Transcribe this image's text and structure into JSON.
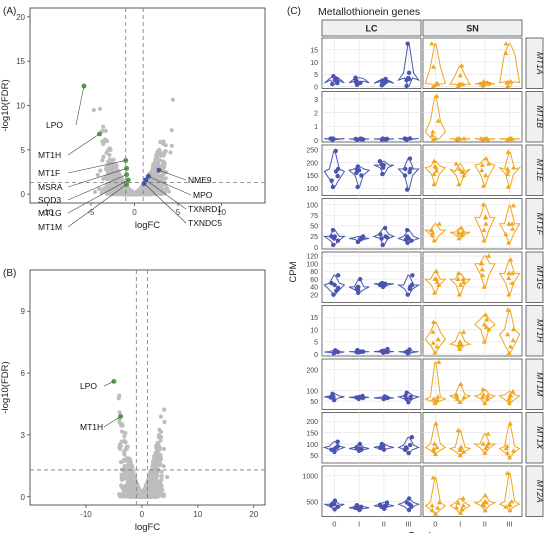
{
  "colors": {
    "grey": "#bdbdbd",
    "green": "#5a9e4f",
    "blue": "#4b55b0",
    "orange": "#f0a51c",
    "panel_border": "#333333",
    "grid": "#e6e6e6",
    "strip_bg": "#f0f0f0"
  },
  "chart_data": [
    {
      "type": "scatter",
      "panel_label": "(A)",
      "xlabel": "logFC",
      "ylabel": "-log10(FDR)",
      "xlim": [
        -12,
        15
      ],
      "ylim": [
        -1,
        21
      ],
      "xticks": [
        -10,
        -5,
        0,
        5,
        10
      ],
      "yticks": [
        0,
        5,
        10,
        15,
        20
      ],
      "vlines": [
        -1,
        1
      ],
      "hline": 1.3,
      "highlighted": [
        {
          "label": "LPO",
          "x": -5.8,
          "y": 12.2,
          "color": "green"
        },
        {
          "label": "MT1H",
          "x": -4.0,
          "y": 6.8,
          "color": "green"
        },
        {
          "label": "MT1F",
          "x": -1.0,
          "y": 3.8,
          "color": "green"
        },
        {
          "label": "MSRA",
          "x": -0.9,
          "y": 2.9,
          "color": "green"
        },
        {
          "label": "SOD3",
          "x": -0.9,
          "y": 2.2,
          "color": "green"
        },
        {
          "label": "MT1G",
          "x": -0.7,
          "y": 1.6,
          "color": "green"
        },
        {
          "label": "MT1M",
          "x": -0.9,
          "y": 1.1,
          "color": "green"
        },
        {
          "label": "NME9",
          "x": 2.8,
          "y": 2.7,
          "color": "blue"
        },
        {
          "label": "MPO",
          "x": 1.6,
          "y": 2.0,
          "color": "blue"
        },
        {
          "label": "TXNRD1",
          "x": 1.3,
          "y": 1.6,
          "color": "blue"
        },
        {
          "label": "TXNDC5",
          "x": 1.1,
          "y": 1.2,
          "color": "blue"
        }
      ]
    },
    {
      "type": "scatter",
      "panel_label": "(B)",
      "xlabel": "logFC",
      "ylabel": "-log10(FDR)",
      "xlim": [
        -20,
        22
      ],
      "ylim": [
        -0.4,
        11
      ],
      "xticks": [
        -10,
        0,
        10,
        20
      ],
      "yticks": [
        0,
        3,
        6,
        9
      ],
      "vlines": [
        -1,
        1
      ],
      "hline": 1.3,
      "highlighted": [
        {
          "label": "LPO",
          "x": -5.0,
          "y": 5.6,
          "color": "green"
        },
        {
          "label": "MT1H",
          "x": -3.8,
          "y": 3.9,
          "color": "green"
        }
      ]
    },
    {
      "type": "violin",
      "panel_label": "(C)",
      "title": "Metallothionein genes",
      "xlabel": "Braak",
      "ylabel": "CPM",
      "columns": [
        "LC",
        "SN"
      ],
      "categories": [
        "0",
        "I",
        "II",
        "III"
      ],
      "column_colors": [
        "blue",
        "orange"
      ],
      "genes": [
        {
          "name": "MT1A",
          "ylim": [
            0,
            19
          ],
          "yticks": [
            0,
            5,
            10,
            15
          ],
          "LC": [
            [
              1.4,
              1,
              2.6,
              3.2,
              4.2
            ],
            [
              1.5,
              0.7,
              2.2,
              3.1,
              3.6
            ],
            [
              1.3,
              0.5,
              2,
              2.4,
              3.1
            ],
            [
              2.6,
              0.2,
              3.5,
              5.6,
              17.5
            ]
          ],
          "SN": [
            [
              1.2,
              0,
              1,
              8,
              17.5
            ],
            [
              0.9,
              0,
              1,
              4.5,
              8.5
            ],
            [
              1,
              0.3,
              1.1,
              1.6,
              2
            ],
            [
              1.5,
              0,
              2,
              13.6,
              17.5
            ]
          ]
        },
        {
          "name": "MT1B",
          "ylim": [
            0,
            3.4
          ],
          "yticks": [
            0,
            1,
            2,
            3
          ],
          "LC": [
            [
              0.1,
              0.02,
              0.05,
              0.08,
              0.1
            ],
            [
              0.08,
              0.02,
              0.05,
              0.08,
              0.1
            ],
            [
              0.08,
              0.02,
              0.05,
              0.08,
              0.1
            ],
            [
              0.12,
              0.02,
              0.05,
              0.08,
              0.1
            ]
          ],
          "SN": [
            [
              0.6,
              0.05,
              0.1,
              1.4,
              3.2
            ],
            [
              0.1,
              0.03,
              0.05,
              0.08,
              0.1
            ],
            [
              0.1,
              0.03,
              0.05,
              0.08,
              0.1
            ],
            [
              0.1,
              0.03,
              0.05,
              0.08,
              0.1
            ]
          ]
        },
        {
          "name": "MT1E",
          "ylim": [
            80,
            260
          ],
          "yticks": [
            100,
            150,
            200,
            250
          ],
          "LC": [
            [
              165,
              105,
              130,
              175,
              245
            ],
            [
              170,
              105,
              150,
              175,
              185
            ],
            [
              190,
              155,
              180,
              190,
              205
            ],
            [
              175,
              95,
              150,
              175,
              215
            ]
          ],
          "SN": [
            [
              180,
              115,
              155,
              185,
              205
            ],
            [
              175,
              115,
              150,
              165,
              195
            ],
            [
              190,
              110,
              150,
              195,
              215
            ],
            [
              180,
              105,
              155,
              175,
              240
            ]
          ]
        },
        {
          "name": "MT1F",
          "ylim": [
            0,
            110
          ],
          "yticks": [
            0,
            25,
            50,
            75,
            100
          ],
          "LC": [
            [
              25,
              5,
              15,
              25,
              40
            ],
            [
              20,
              12,
              18,
              22,
              25
            ],
            [
              25,
              5,
              20,
              30,
              45
            ],
            [
              20,
              10,
              15,
              25,
              40
            ]
          ],
          "SN": [
            [
              40,
              15,
              28,
              40,
              55
            ],
            [
              35,
              20,
              28,
              35,
              45
            ],
            [
              70,
              15,
              40,
              70,
              100
            ],
            [
              55,
              10,
              30,
              55,
              98
            ]
          ]
        },
        {
          "name": "MT1G",
          "ylim": [
            5,
            125
          ],
          "yticks": [
            20,
            40,
            60,
            80,
            100,
            120
          ],
          "LC": [
            [
              45,
              20,
              30,
              50,
              70
            ],
            [
              40,
              25,
              32,
              40,
              60
            ],
            [
              48,
              40,
              45,
              48,
              50
            ],
            [
              45,
              20,
              35,
              45,
              70
            ]
          ],
          "SN": [
            [
              60,
              25,
              45,
              60,
              80
            ],
            [
              60,
              20,
              45,
              60,
              75
            ],
            [
              100,
              40,
              70,
              100,
              120
            ],
            [
              75,
              20,
              50,
              75,
              110
            ]
          ]
        },
        {
          "name": "MT1H",
          "ylim": [
            0,
            19
          ],
          "yticks": [
            0,
            5,
            10,
            15
          ],
          "LC": [
            [
              0.8,
              0.3,
              0.6,
              1,
              1.5
            ],
            [
              1,
              0.6,
              0.8,
              1,
              1.6
            ],
            [
              1,
              0.5,
              0.8,
              1.2,
              2
            ],
            [
              1,
              0.2,
              0.6,
              1,
              1.8
            ]
          ],
          "SN": [
            [
              6,
              0.5,
              3,
              9,
              13
            ],
            [
              4,
              2,
              3.5,
              5,
              9
            ],
            [
              12,
              5,
              10,
              14,
              16
            ],
            [
              8,
              0.3,
              3,
              10,
              18
            ]
          ]
        },
        {
          "name": "MT1M",
          "ylim": [
            20,
            240
          ],
          "yticks": [
            50,
            100,
            200
          ],
          "LC": [
            [
              70,
              55,
              65,
              75,
              85
            ],
            [
              68,
              60,
              65,
              70,
              75
            ],
            [
              65,
              60,
              63,
              68,
              72
            ],
            [
              70,
              45,
              60,
              75,
              90
            ]
          ],
          "SN": [
            [
              60,
              40,
              50,
              70,
              235
            ],
            [
              75,
              45,
              60,
              80,
              130
            ],
            [
              75,
              40,
              60,
              80,
              105
            ],
            [
              75,
              40,
              55,
              80,
              95
            ]
          ]
        },
        {
          "name": "MT1X",
          "ylim": [
            25,
            230
          ],
          "yticks": [
            50,
            100,
            150,
            200
          ],
          "LC": [
            [
              85,
              65,
              75,
              90,
              110
            ],
            [
              80,
              70,
              75,
              85,
              100
            ],
            [
              85,
              75,
              80,
              90,
              100
            ],
            [
              85,
              60,
              75,
              95,
              130
            ]
          ],
          "SN": [
            [
              85,
              55,
              70,
              100,
              190
            ],
            [
              80,
              50,
              65,
              85,
              160
            ],
            [
              100,
              60,
              80,
              100,
              145
            ],
            [
              80,
              40,
              60,
              90,
              190
            ]
          ]
        },
        {
          "name": "MT2A",
          "ylim": [
            250,
            1150
          ],
          "yticks": [
            500,
            1000
          ],
          "LC": [
            [
              450,
              350,
              400,
              450,
              520
            ],
            [
              380,
              340,
              360,
              400,
              430
            ],
            [
              420,
              360,
              400,
              440,
              480
            ],
            [
              450,
              340,
              400,
              480,
              560
            ]
          ],
          "SN": [
            [
              420,
              260,
              330,
              480,
              960
            ],
            [
              420,
              280,
              350,
              470,
              560
            ],
            [
              480,
              330,
              420,
              500,
              620
            ],
            [
              450,
              330,
              400,
              500,
              1050
            ]
          ]
        }
      ]
    }
  ]
}
